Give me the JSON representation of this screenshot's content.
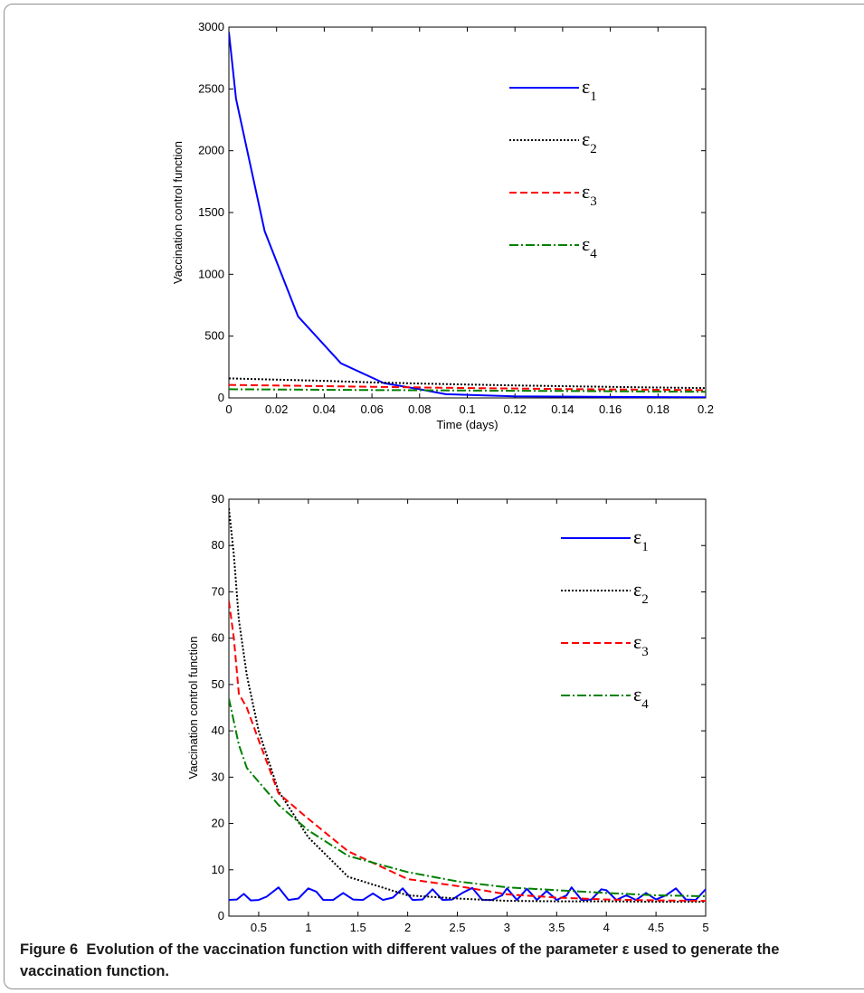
{
  "chart_data": [
    {
      "type": "line",
      "xlabel": "Time (days)",
      "ylabel": "Vaccination control function",
      "xlim": [
        0,
        0.2
      ],
      "ylim": [
        0,
        3000
      ],
      "xticks": [
        0,
        0.02,
        0.04,
        0.06,
        0.08,
        0.1,
        0.12,
        0.14,
        0.16,
        0.18,
        0.2
      ],
      "yticks": [
        0,
        500,
        1000,
        1500,
        2000,
        2500,
        3000
      ],
      "xtick_labels": [
        "0",
        "0.02",
        "0.04",
        "0.06",
        "0.08",
        "0.1",
        "0.12",
        "0.14",
        "0.16",
        "0.18",
        "0.2"
      ],
      "ytick_labels": [
        "0",
        "500",
        "1000",
        "1500",
        "2000",
        "2500",
        "3000"
      ],
      "legend_position": "top-right",
      "grid": false,
      "series": [
        {
          "name": "ε",
          "sub": "1",
          "color": "#0000ff",
          "dash": "",
          "width": 2,
          "x": [
            0,
            0.003,
            0.015,
            0.029,
            0.047,
            0.065,
            0.08,
            0.091,
            0.12,
            0.16,
            0.2
          ],
          "y": [
            2960,
            2420,
            1350,
            660,
            280,
            120,
            70,
            30,
            13,
            8,
            5
          ]
        },
        {
          "name": "ε",
          "sub": "2",
          "color": "#000000",
          "dash": "2,2",
          "width": 2,
          "x": [
            0,
            0.02,
            0.04,
            0.06,
            0.08,
            0.1,
            0.12,
            0.14,
            0.16,
            0.18,
            0.2
          ],
          "y": [
            158,
            148,
            138,
            126,
            116,
            108,
            101,
            95,
            89,
            84,
            80
          ]
        },
        {
          "name": "ε",
          "sub": "3",
          "color": "#ff0000",
          "dash": "8,4",
          "width": 2,
          "x": [
            0,
            0.02,
            0.04,
            0.06,
            0.08,
            0.1,
            0.12,
            0.14,
            0.16,
            0.18,
            0.2
          ],
          "y": [
            105,
            100,
            95,
            90,
            85,
            80,
            76,
            72,
            69,
            66,
            63
          ]
        },
        {
          "name": "ε",
          "sub": "4",
          "color": "#008000",
          "dash": "10,3,2,3",
          "width": 2,
          "x": [
            0,
            0.02,
            0.04,
            0.06,
            0.08,
            0.1,
            0.12,
            0.14,
            0.16,
            0.18,
            0.2
          ],
          "y": [
            70,
            68,
            66,
            64,
            62,
            60,
            58,
            56,
            54,
            52,
            50
          ]
        }
      ]
    },
    {
      "type": "line",
      "xlabel": "Time (days)",
      "ylabel": "Vaccination control function",
      "xlim": [
        0.2,
        5
      ],
      "ylim": [
        0,
        90
      ],
      "xticks": [
        0.5,
        1,
        1.5,
        2,
        2.5,
        3,
        3.5,
        4,
        4.5,
        5
      ],
      "yticks": [
        0,
        10,
        20,
        30,
        40,
        50,
        60,
        70,
        80,
        90
      ],
      "xtick_labels": [
        "0.5",
        "1",
        "1.5",
        "2",
        "2.5",
        "3",
        "3.5",
        "4",
        "4.5",
        "5"
      ],
      "ytick_labels": [
        "0",
        "10",
        "20",
        "30",
        "40",
        "50",
        "60",
        "70",
        "80",
        "90"
      ],
      "legend_position": "top-right",
      "grid": false,
      "series": [
        {
          "name": "ε",
          "sub": "1",
          "color": "#0000ff",
          "dash": "",
          "width": 2,
          "x": [
            0.2,
            0.28,
            0.35,
            0.42,
            0.5,
            0.58,
            0.7,
            0.8,
            0.9,
            1.0,
            1.08,
            1.15,
            1.25,
            1.35,
            1.45,
            1.55,
            1.65,
            1.75,
            1.85,
            1.95,
            2.05,
            2.15,
            2.25,
            2.35,
            2.45,
            2.55,
            2.65,
            2.75,
            2.85,
            2.95,
            3.0,
            3.1,
            3.2,
            3.3,
            3.4,
            3.5,
            3.6,
            3.65,
            3.75,
            3.85,
            3.95,
            4.0,
            4.1,
            4.2,
            4.3,
            4.4,
            4.5,
            4.6,
            4.7,
            4.8,
            4.9,
            5.0
          ],
          "y": [
            3.5,
            3.6,
            4.8,
            3.4,
            3.5,
            4.2,
            6.2,
            3.5,
            3.8,
            6.0,
            5.3,
            3.5,
            3.5,
            5.0,
            3.6,
            3.5,
            4.9,
            3.5,
            4.0,
            6.0,
            3.5,
            3.6,
            5.8,
            3.5,
            3.6,
            5.0,
            6.1,
            3.5,
            3.5,
            4.5,
            6.0,
            3.5,
            5.9,
            3.5,
            5.4,
            3.5,
            4.5,
            6.2,
            3.5,
            3.6,
            5.8,
            5.6,
            3.5,
            4.5,
            3.5,
            5.0,
            3.6,
            4.5,
            6.0,
            3.6,
            3.5,
            5.8
          ]
        },
        {
          "name": "ε",
          "sub": "2",
          "color": "#000000",
          "dash": "2,2",
          "width": 2,
          "x": [
            0.2,
            0.25,
            0.3,
            0.38,
            0.5,
            0.7,
            1.0,
            1.4,
            2.0,
            2.5,
            3.0,
            3.5,
            4.0,
            4.5,
            5.0
          ],
          "y": [
            88,
            78,
            64,
            52,
            40,
            27,
            17,
            8.5,
            4.5,
            3.8,
            3.3,
            3.2,
            3.2,
            3.1,
            3.1
          ]
        },
        {
          "name": "ε",
          "sub": "3",
          "color": "#ff0000",
          "dash": "8,4",
          "width": 2,
          "x": [
            0.2,
            0.25,
            0.3,
            0.38,
            0.5,
            0.7,
            1.0,
            1.4,
            2.0,
            2.5,
            3.0,
            3.5,
            4.0,
            4.5,
            5.0
          ],
          "y": [
            68,
            60,
            48,
            45,
            38,
            26.5,
            21,
            14,
            8,
            6.5,
            4.7,
            4.0,
            3.6,
            3.4,
            3.3
          ]
        },
        {
          "name": "ε",
          "sub": "4",
          "color": "#008000",
          "dash": "10,3,2,3",
          "width": 2,
          "x": [
            0.2,
            0.25,
            0.3,
            0.38,
            0.5,
            0.7,
            1.0,
            1.4,
            2.0,
            2.5,
            3.0,
            3.5,
            4.0,
            4.5,
            5.0
          ],
          "y": [
            47,
            42,
            37,
            32,
            29,
            24,
            18.5,
            13,
            9.5,
            7.5,
            6.2,
            5.6,
            5.0,
            4.5,
            4.3
          ]
        }
      ]
    }
  ],
  "caption": {
    "figure_label": "Figure 6",
    "text": "Evolution of the vaccination function with different values of the parameter ε used to generate the vaccination function."
  }
}
